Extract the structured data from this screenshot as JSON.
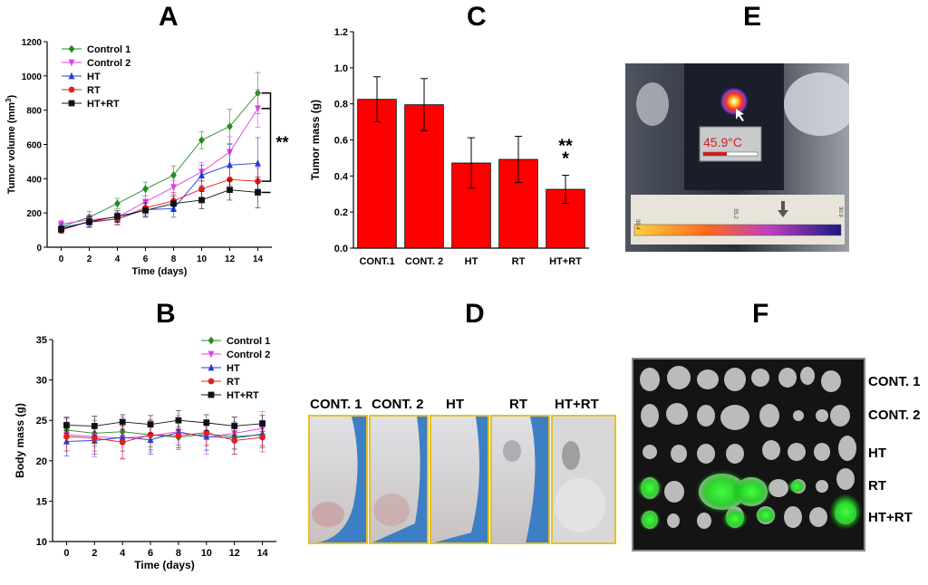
{
  "panels": {
    "a": {
      "letter": "A"
    },
    "b": {
      "letter": "B"
    },
    "c": {
      "letter": "C"
    },
    "d": {
      "letter": "D"
    },
    "e": {
      "letter": "E"
    },
    "f": {
      "letter": "F"
    }
  },
  "chart_data": [
    {
      "id": "A",
      "type": "line",
      "xlabel": "Time (days)",
      "ylabel": "Tumor volume (mm3)",
      "x": [
        0,
        2,
        4,
        6,
        8,
        10,
        12,
        14
      ],
      "xlim": [
        -1,
        15
      ],
      "ylim": [
        0,
        1200
      ],
      "xticks": [
        0,
        2,
        4,
        6,
        8,
        10,
        12,
        14
      ],
      "yticks": [
        0,
        200,
        400,
        600,
        800,
        1000,
        1200
      ],
      "legend_position": "top-left",
      "series": [
        {
          "name": "Control 1",
          "color": "#228B22",
          "marker": "diamond",
          "values": [
            120,
            175,
            255,
            340,
            420,
            625,
            705,
            900
          ],
          "errors": [
            20,
            35,
            30,
            40,
            55,
            50,
            100,
            120
          ]
        },
        {
          "name": "Control 2",
          "color": "#E040E0",
          "marker": "triangle-down",
          "values": [
            135,
            160,
            175,
            265,
            350,
            440,
            555,
            810
          ],
          "errors": [
            20,
            30,
            30,
            35,
            40,
            55,
            90,
            110
          ]
        },
        {
          "name": "HT",
          "color": "#1E3EE0",
          "marker": "triangle-up",
          "values": [
            115,
            145,
            165,
            220,
            225,
            420,
            480,
            490
          ],
          "errors": [
            20,
            30,
            35,
            40,
            50,
            60,
            120,
            150
          ]
        },
        {
          "name": "RT",
          "color": "#E02020",
          "marker": "circle",
          "values": [
            100,
            150,
            165,
            230,
            270,
            340,
            395,
            385
          ],
          "errors": [
            20,
            30,
            30,
            40,
            50,
            50,
            70,
            80
          ]
        },
        {
          "name": "HT+RT",
          "color": "#111111",
          "marker": "square",
          "values": [
            105,
            150,
            180,
            215,
            255,
            275,
            335,
            320
          ],
          "errors": [
            20,
            30,
            35,
            40,
            45,
            50,
            60,
            90
          ]
        }
      ],
      "annotations": [
        {
          "text": "**"
        }
      ]
    },
    {
      "id": "B",
      "type": "line",
      "xlabel": "Time (days)",
      "ylabel": "Body mass (g)",
      "x": [
        0,
        2,
        4,
        6,
        8,
        10,
        12,
        14
      ],
      "xlim": [
        -1,
        15
      ],
      "ylim": [
        10,
        35
      ],
      "xticks": [
        0,
        2,
        4,
        6,
        8,
        10,
        12,
        14
      ],
      "yticks": [
        10,
        15,
        20,
        25,
        30,
        35
      ],
      "legend_position": "top-right",
      "series": [
        {
          "name": "Control 1",
          "color": "#228B22",
          "marker": "diamond",
          "values": [
            23.8,
            23.4,
            23.6,
            23.2,
            22.9,
            23.3,
            23.0,
            23.2
          ],
          "errors": [
            1.5,
            1.6,
            1.4,
            1.5,
            1.3,
            1.4,
            1.5,
            1.4
          ]
        },
        {
          "name": "Control 2",
          "color": "#E040E0",
          "marker": "triangle-down",
          "values": [
            23.2,
            23.0,
            22.8,
            23.1,
            23.6,
            22.9,
            23.4,
            24.0
          ],
          "errors": [
            2.0,
            2.5,
            2.6,
            2.0,
            2.0,
            2.1,
            2.0,
            2.1
          ]
        },
        {
          "name": "HT",
          "color": "#1E3EE0",
          "marker": "triangle-up",
          "values": [
            22.4,
            22.5,
            22.9,
            22.6,
            23.5,
            23.0,
            22.8,
            23.3
          ],
          "errors": [
            1.8,
            1.7,
            1.7,
            1.8,
            1.6,
            1.7,
            2.0,
            1.7
          ]
        },
        {
          "name": "RT",
          "color": "#E02020",
          "marker": "circle",
          "values": [
            23.0,
            22.8,
            22.3,
            23.2,
            23.1,
            23.5,
            22.5,
            22.9
          ],
          "errors": [
            1.8,
            1.6,
            2.0,
            1.8,
            1.7,
            1.6,
            1.7,
            1.8
          ]
        },
        {
          "name": "HT+RT",
          "color": "#111111",
          "marker": "square",
          "values": [
            24.4,
            24.3,
            24.8,
            24.5,
            25.0,
            24.7,
            24.3,
            24.6
          ],
          "errors": [
            1.0,
            1.2,
            0.9,
            1.1,
            1.2,
            1.0,
            1.1,
            1.0
          ]
        }
      ]
    },
    {
      "id": "C",
      "type": "bar",
      "ylabel": "Tumor mass (g)",
      "xlabel": "",
      "categories": [
        "CONT.1",
        "CONT. 2",
        "HT",
        "RT",
        "HT+RT"
      ],
      "values": [
        0.825,
        0.795,
        0.472,
        0.492,
        0.326
      ],
      "errors": [
        0.125,
        0.145,
        0.14,
        0.128,
        0.078
      ],
      "ylim": [
        0,
        1.2
      ],
      "yticks": [
        "0.0",
        "0.2",
        "0.4",
        "0.6",
        "0.8",
        "1.0",
        "1.2"
      ],
      "bar_color": "#FF0000",
      "annotations": [
        {
          "category": "HT+RT",
          "lines": [
            "**",
            "*"
          ]
        }
      ]
    }
  ],
  "photos": {
    "d": {
      "labels": [
        "CONT. 1",
        "CONT. 2",
        "HT",
        "RT",
        "HT+RT"
      ],
      "border_color": "#E8C020"
    },
    "e": {
      "temperature": "45.9°C",
      "scale_ticks": [
        "39.4",
        "35.2",
        "30.9"
      ]
    },
    "f": {
      "row_labels": [
        "CONT. 1",
        "CONT. 2",
        "HT",
        "RT",
        "HT+RT"
      ]
    }
  }
}
